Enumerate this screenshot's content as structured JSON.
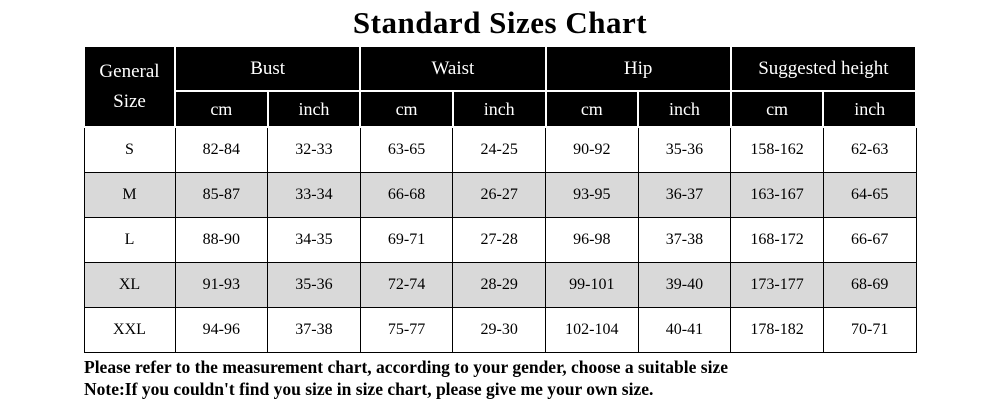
{
  "title": "Standard Sizes Chart",
  "table": {
    "corner_header": "General Size",
    "groups": [
      {
        "label": "Bust"
      },
      {
        "label": "Waist"
      },
      {
        "label": "Hip"
      },
      {
        "label": "Suggested height"
      }
    ],
    "unit_headers": [
      "cm",
      "inch",
      "cm",
      "inch",
      "cm",
      "inch",
      "cm",
      "inch"
    ],
    "rows": [
      {
        "size": "S",
        "values": [
          "82-84",
          "32-33",
          "63-65",
          "24-25",
          "90-92",
          "35-36",
          "158-162",
          "62-63"
        ]
      },
      {
        "size": "M",
        "values": [
          "85-87",
          "33-34",
          "66-68",
          "26-27",
          "93-95",
          "36-37",
          "163-167",
          "64-65"
        ]
      },
      {
        "size": "L",
        "values": [
          "88-90",
          "34-35",
          "69-71",
          "27-28",
          "96-98",
          "37-38",
          "168-172",
          "66-67"
        ]
      },
      {
        "size": "XL",
        "values": [
          "91-93",
          "35-36",
          "72-74",
          "28-29",
          "99-101",
          "39-40",
          "173-177",
          "68-69"
        ]
      },
      {
        "size": "XXL",
        "values": [
          "94-96",
          "37-38",
          "75-77",
          "29-30",
          "102-104",
          "40-41",
          "178-182",
          "70-71"
        ]
      }
    ]
  },
  "footer": {
    "line1": "Please refer to the measurement chart, according to your gender, choose a suitable size",
    "line2": "Note:If you couldn't find you size in size chart, please give me your own size."
  },
  "colors": {
    "header_bg": "#000000",
    "header_text": "#ffffff",
    "alt_row_bg": "#d9d9d9",
    "border": "#000000"
  }
}
